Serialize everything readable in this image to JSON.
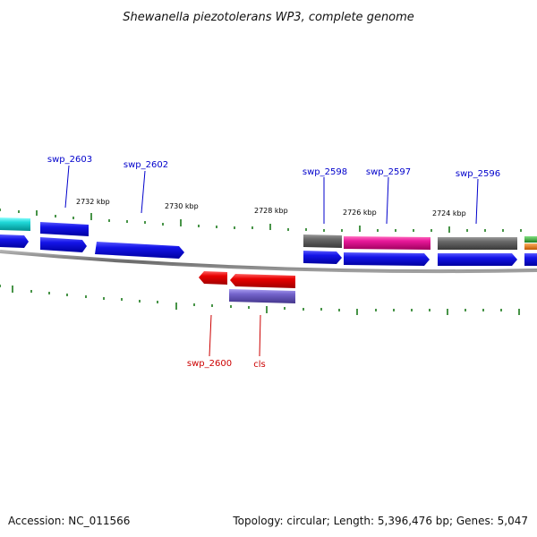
{
  "title": "Shewanella piezotolerans WP3, complete genome",
  "footer": {
    "accession": "Accession: NC_011566",
    "info": "Topology: circular; Length: 5,396,476 bp; Genes: 5,047"
  },
  "scale_labels": [
    "2732 kbp",
    "2730 kbp",
    "2728 kbp",
    "2726 kbp",
    "2724 kbp"
  ],
  "gene_labels_top": [
    "swp_2603",
    "swp_2602",
    "swp_2598",
    "swp_2597",
    "swp_2596"
  ],
  "gene_labels_bottom": [
    "swp_2600",
    "cls"
  ],
  "colors": {
    "blue_gene": "#1010e0",
    "blue_label": "#0000cc",
    "red_gene": "#e00000",
    "red_label": "#cc0000",
    "gray_gene": "#606060",
    "magenta_gene": "#e01890",
    "cyan_gene": "#20d8d8",
    "purple_gene": "#7060c8",
    "green_gene": "#40b040",
    "orange_gene": "#f08020",
    "backbone": "#808080",
    "tick": "#1a7a1a"
  }
}
